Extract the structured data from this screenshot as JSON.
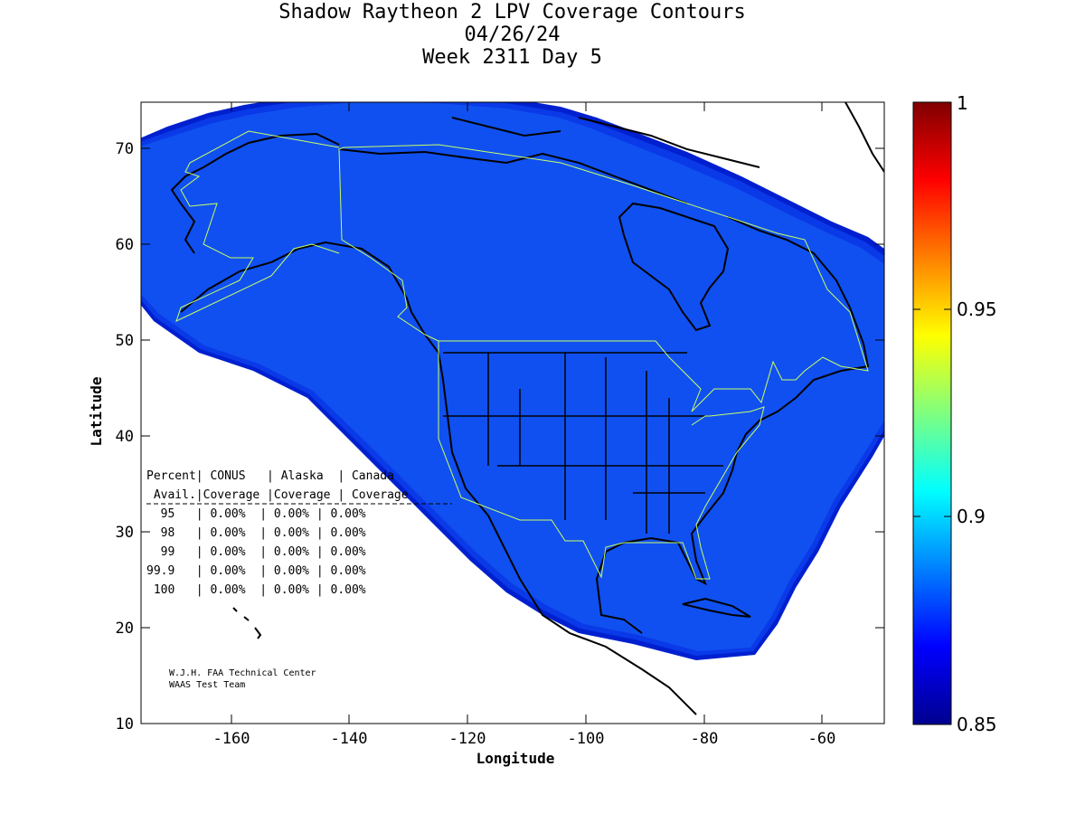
{
  "title": {
    "line1": "Shadow Raytheon 2 LPV Coverage Contours",
    "line2": "04/26/24",
    "line3": "Week 2311 Day 5"
  },
  "axes": {
    "xlabel": "Longitude",
    "ylabel": "Latitude",
    "xlim": [
      -175,
      -50
    ],
    "ylim": [
      10,
      75
    ],
    "xticks": [
      -160,
      -140,
      -120,
      -100,
      -80,
      -60
    ],
    "yticks": [
      10,
      20,
      30,
      40,
      50,
      60,
      70
    ]
  },
  "colorbar": {
    "range": [
      0.85,
      1
    ],
    "labels": [
      "1",
      "0.95",
      "0.9",
      "0.85"
    ],
    "colormap": "jet"
  },
  "coverage_color": "#1050f0",
  "table": {
    "header1": "Percent| CONUS   | Alaska  | Canada",
    "header2": " Avail.|Coverage |Coverage | Coverage",
    "rows": [
      "  95   | 0.00%  | 0.00% | 0.00%",
      "  98   | 0.00%  | 0.00% | 0.00%",
      "  99   | 0.00%  | 0.00% | 0.00%",
      "99.9   | 0.00%  | 0.00% | 0.00%",
      " 100   | 0.00%  | 0.00% | 0.00%"
    ]
  },
  "credit": {
    "line1": "W.J.H. FAA Technical Center",
    "line2": "WAAS Test Team"
  }
}
